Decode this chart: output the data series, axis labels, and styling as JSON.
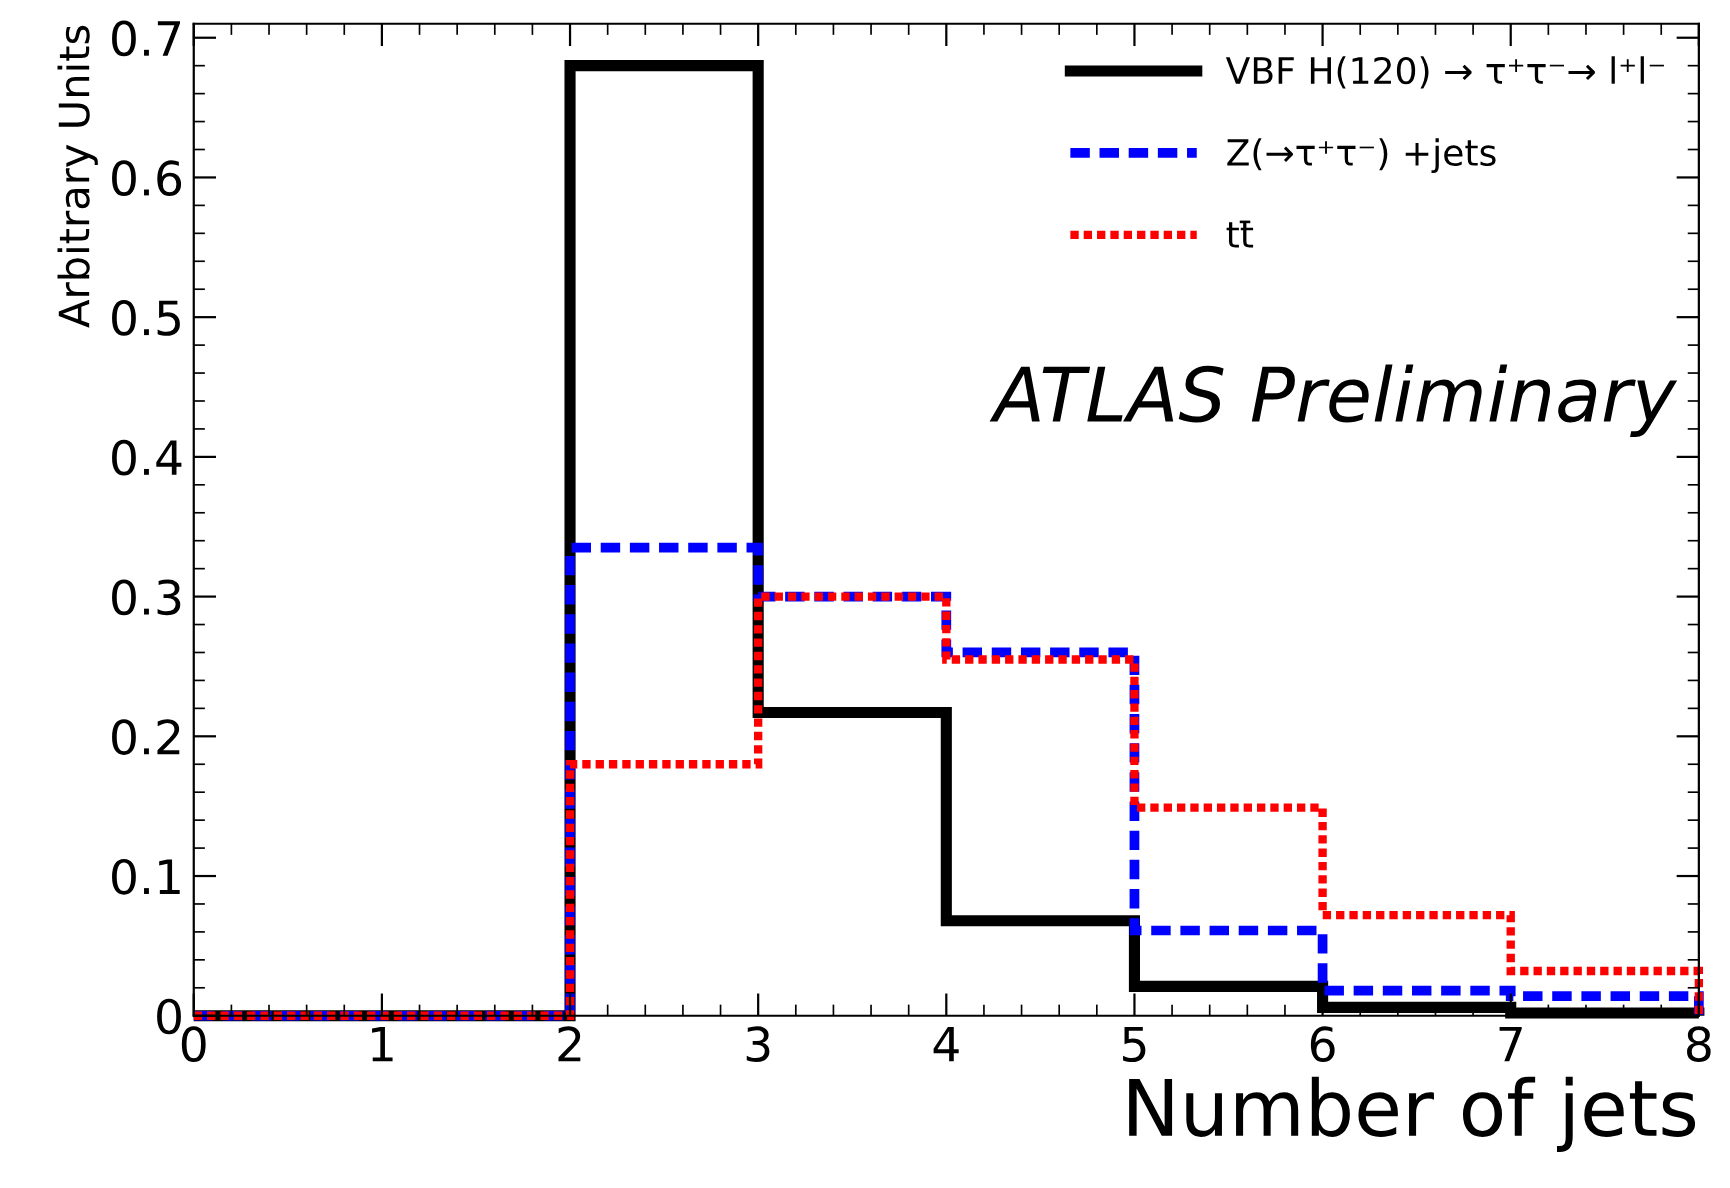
{
  "chart_data": {
    "type": "histogram",
    "xlabel": "Number of jets",
    "ylabel": "Arbitrary Units",
    "bins": [
      0,
      1,
      2,
      3,
      4,
      5,
      6,
      7,
      8
    ],
    "series": [
      {
        "name": "VBF H(120) → τ⁺τ⁻→ l⁺l⁻",
        "color": "#000000",
        "line_style": "solid",
        "values": [
          0,
          0,
          0.68,
          0.217,
          0.068,
          0.021,
          0.006,
          0.002
        ]
      },
      {
        "name": "Z(→τ⁺τ⁻) +jets",
        "color": "#0000ff",
        "line_style": "dashed",
        "values": [
          0,
          0,
          0.335,
          0.3,
          0.26,
          0.061,
          0.018,
          0.014
        ]
      },
      {
        "name": "tt̄",
        "color": "#ff0000",
        "line_style": "dotted",
        "values": [
          0,
          0,
          0.18,
          0.3,
          0.255,
          0.149,
          0.072,
          0.032
        ]
      }
    ],
    "xlim": [
      0,
      8
    ],
    "xticks": [
      0,
      1,
      2,
      3,
      4,
      5,
      6,
      7,
      8
    ],
    "ylim": [
      0,
      0.71
    ],
    "yticks": [
      0,
      0.1,
      0.2,
      0.3,
      0.4,
      0.5,
      0.6,
      0.7
    ],
    "legend": "top right",
    "grid": false,
    "annotations": [
      "ATLAS Preliminary"
    ]
  }
}
